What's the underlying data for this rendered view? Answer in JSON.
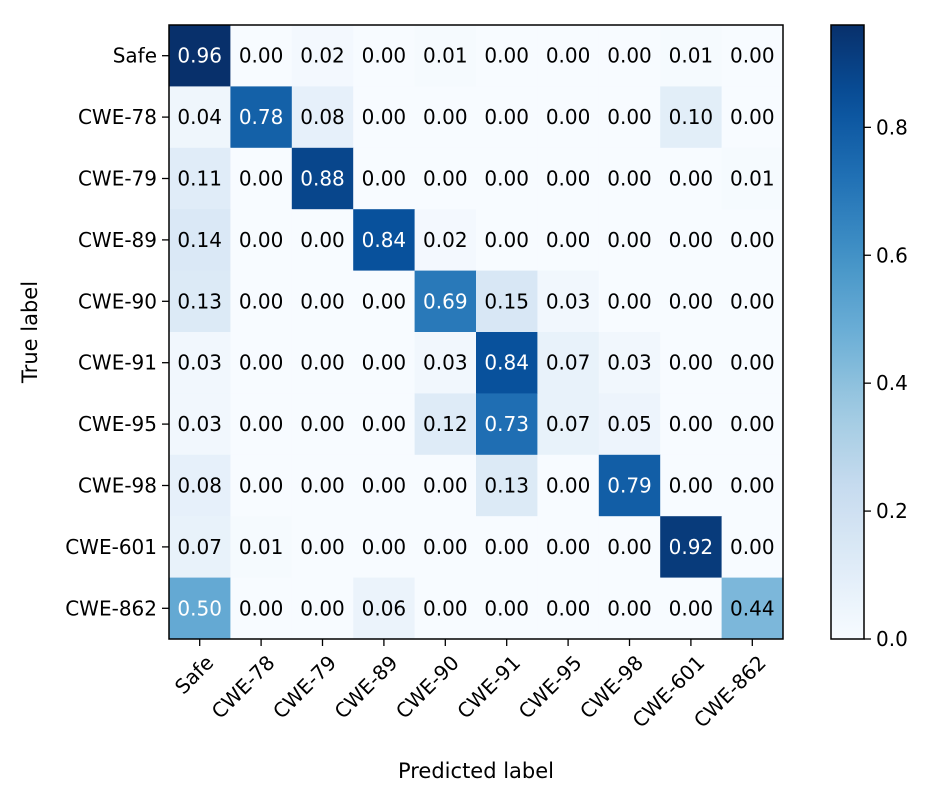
{
  "chart_data": {
    "type": "heatmap",
    "title": "",
    "xlabel": "Predicted label",
    "ylabel": "True label",
    "x_categories": [
      "Safe",
      "CWE-78",
      "CWE-79",
      "CWE-89",
      "CWE-90",
      "CWE-91",
      "CWE-95",
      "CWE-98",
      "CWE-601",
      "CWE-862"
    ],
    "y_categories": [
      "Safe",
      "CWE-78",
      "CWE-79",
      "CWE-89",
      "CWE-90",
      "CWE-91",
      "CWE-95",
      "CWE-98",
      "CWE-601",
      "CWE-862"
    ],
    "values": [
      [
        0.96,
        0.0,
        0.02,
        0.0,
        0.01,
        0.0,
        0.0,
        0.0,
        0.01,
        0.0
      ],
      [
        0.04,
        0.78,
        0.08,
        0.0,
        0.0,
        0.0,
        0.0,
        0.0,
        0.1,
        0.0
      ],
      [
        0.11,
        0.0,
        0.88,
        0.0,
        0.0,
        0.0,
        0.0,
        0.0,
        0.0,
        0.01
      ],
      [
        0.14,
        0.0,
        0.0,
        0.84,
        0.02,
        0.0,
        0.0,
        0.0,
        0.0,
        0.0
      ],
      [
        0.13,
        0.0,
        0.0,
        0.0,
        0.69,
        0.15,
        0.03,
        0.0,
        0.0,
        0.0
      ],
      [
        0.03,
        0.0,
        0.0,
        0.0,
        0.03,
        0.84,
        0.07,
        0.03,
        0.0,
        0.0
      ],
      [
        0.03,
        0.0,
        0.0,
        0.0,
        0.12,
        0.73,
        0.07,
        0.05,
        0.0,
        0.0
      ],
      [
        0.08,
        0.0,
        0.0,
        0.0,
        0.0,
        0.13,
        0.0,
        0.79,
        0.0,
        0.0
      ],
      [
        0.07,
        0.01,
        0.0,
        0.0,
        0.0,
        0.0,
        0.0,
        0.0,
        0.92,
        0.0
      ],
      [
        0.5,
        0.0,
        0.0,
        0.06,
        0.0,
        0.0,
        0.0,
        0.0,
        0.0,
        0.44
      ]
    ],
    "value_format": "0.00",
    "colormap": "Blues",
    "color_range": [
      0.0,
      0.96
    ],
    "colorbar_ticks": [
      "0.0",
      "0.2",
      "0.4",
      "0.6",
      "0.8"
    ],
    "colorbar_tick_values": [
      0.0,
      0.2,
      0.4,
      0.6,
      0.8
    ],
    "x_tick_rotation": "45 degrees",
    "grid": false
  }
}
